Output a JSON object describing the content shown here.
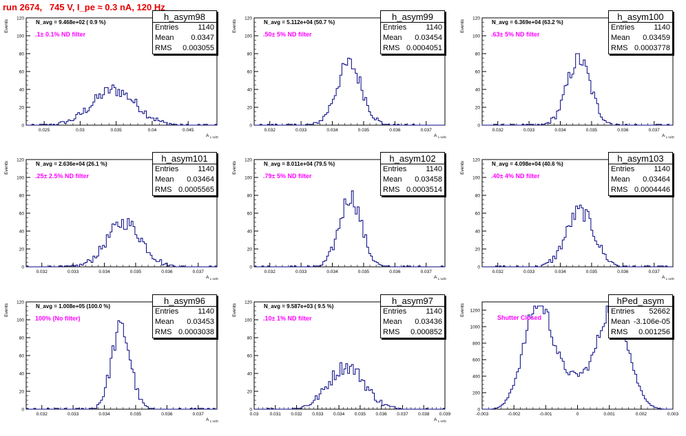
{
  "page_title": "run 2674,   745 V, I_pe ≈ 0.3 nA, 120 Hz",
  "colors": {
    "title": "#e60000",
    "line": "#000080",
    "filter_label": "#ff00ff"
  },
  "chart_data": [
    {
      "type": "bar",
      "name": "h_asym98",
      "navg": "N_avg = 9.468e+02 ( 0.9 %)",
      "filter": ".1± 0.1% ND filter",
      "entries": "1140",
      "mean": "0.0347",
      "rms": "0.003055",
      "ylabel": "Events",
      "xlabel": "A",
      "xlim": [
        0.0225,
        0.049
      ],
      "ylim": [
        0,
        120
      ],
      "xticks": [
        0.025,
        0.03,
        0.035,
        0.04,
        0.045
      ],
      "xticklabels": [
        "0.025",
        "0.03",
        "0.035",
        "0.04",
        "0.045"
      ],
      "yticks": [
        0,
        20,
        40,
        60,
        80,
        100,
        120
      ],
      "dist": {
        "mu": 0.0347,
        "sigma": 0.003055,
        "n": 1140
      }
    },
    {
      "type": "bar",
      "name": "h_asym99",
      "navg": "N_avg = 5.112e+04 (50.7 %)",
      "filter": ".50± 5% ND filter",
      "entries": "1140",
      "mean": "0.03454",
      "rms": "0.0004051",
      "ylabel": "Events",
      "xlabel": "A",
      "xlim": [
        0.0315,
        0.0376
      ],
      "ylim": [
        0,
        120
      ],
      "xticks": [
        0.032,
        0.033,
        0.034,
        0.035,
        0.036,
        0.037
      ],
      "xticklabels": [
        "0.032",
        "0.033",
        "0.034",
        "0.035",
        "0.036",
        "0.037"
      ],
      "yticks": [
        0,
        20,
        40,
        60,
        80,
        100,
        120
      ],
      "dist": {
        "mu": 0.03454,
        "sigma": 0.0004051,
        "n": 1140
      }
    },
    {
      "type": "bar",
      "name": "h_asym100",
      "navg": "N_avg = 6.369e+04 (63.2 %)",
      "filter": ".63± 5% ND filter",
      "entries": "1140",
      "mean": "0.03459",
      "rms": "0.0003778",
      "ylabel": "Events",
      "xlabel": "A",
      "xlim": [
        0.0315,
        0.0376
      ],
      "ylim": [
        0,
        120
      ],
      "xticks": [
        0.032,
        0.033,
        0.034,
        0.035,
        0.036,
        0.037
      ],
      "xticklabels": [
        "0.032",
        "0.033",
        "0.034",
        "0.035",
        "0.036",
        "0.037"
      ],
      "yticks": [
        0,
        20,
        40,
        60,
        80,
        100,
        120
      ],
      "dist": {
        "mu": 0.03459,
        "sigma": 0.0003778,
        "n": 1140
      }
    },
    {
      "type": "bar",
      "name": "h_asym101",
      "navg": "N_avg = 2.636e+04 (26.1 %)",
      "filter": ".25± 2.5% ND filter",
      "entries": "1140",
      "mean": "0.03464",
      "rms": "0.0005565",
      "ylabel": "Events",
      "xlabel": "A",
      "xlim": [
        0.0315,
        0.0376
      ],
      "ylim": [
        0,
        120
      ],
      "xticks": [
        0.032,
        0.033,
        0.034,
        0.035,
        0.036,
        0.037
      ],
      "xticklabels": [
        "0.032",
        "0.033",
        "0.034",
        "0.035",
        "0.036",
        "0.037"
      ],
      "yticks": [
        0,
        20,
        40,
        60,
        80,
        100,
        120
      ],
      "dist": {
        "mu": 0.03464,
        "sigma": 0.0005565,
        "n": 1140
      }
    },
    {
      "type": "bar",
      "name": "h_asym102",
      "navg": "N_avg = 8.011e+04 (79.5 %)",
      "filter": ".79± 5% ND filter",
      "entries": "1140",
      "mean": "0.03458",
      "rms": "0.0003514",
      "ylabel": "Events",
      "xlabel": "A",
      "xlim": [
        0.0315,
        0.0376
      ],
      "ylim": [
        0,
        120
      ],
      "xticks": [
        0.032,
        0.033,
        0.034,
        0.035,
        0.036,
        0.037
      ],
      "xticklabels": [
        "0.032",
        "0.033",
        "0.034",
        "0.035",
        "0.036",
        "0.037"
      ],
      "yticks": [
        0,
        20,
        40,
        60,
        80,
        100,
        120
      ],
      "dist": {
        "mu": 0.03458,
        "sigma": 0.0003514,
        "n": 1140
      }
    },
    {
      "type": "bar",
      "name": "h_asym103",
      "navg": "N_avg = 4.098e+04 (40.6 %)",
      "filter": ".40± 4% ND filter",
      "entries": "1140",
      "mean": "0.03464",
      "rms": "0.0004446",
      "ylabel": "Events",
      "xlabel": "A",
      "xlim": [
        0.0315,
        0.0376
      ],
      "ylim": [
        0,
        120
      ],
      "xticks": [
        0.032,
        0.033,
        0.034,
        0.035,
        0.036,
        0.037
      ],
      "xticklabels": [
        "0.032",
        "0.033",
        "0.034",
        "0.035",
        "0.036",
        "0.037"
      ],
      "yticks": [
        0,
        20,
        40,
        60,
        80,
        100,
        120
      ],
      "dist": {
        "mu": 0.03464,
        "sigma": 0.0004446,
        "n": 1140
      }
    },
    {
      "type": "bar",
      "name": "h_asym96",
      "navg": "N_avg = 1.008e+05 (100.0 %)",
      "filter": "100% (No filter)",
      "entries": "1140",
      "mean": "0.03453",
      "rms": "0.0003038",
      "ylabel": "Events",
      "xlabel": "A",
      "xlim": [
        0.0315,
        0.0376
      ],
      "ylim": [
        0,
        120
      ],
      "xticks": [
        0.032,
        0.033,
        0.034,
        0.035,
        0.036,
        0.037
      ],
      "xticklabels": [
        "0.032",
        "0.033",
        "0.034",
        "0.035",
        "0.036",
        "0.037"
      ],
      "yticks": [
        0,
        20,
        40,
        60,
        80,
        100,
        120
      ],
      "dist": {
        "mu": 0.03453,
        "sigma": 0.0003038,
        "n": 1140
      }
    },
    {
      "type": "bar",
      "name": "h_asym97",
      "navg": "N_avg = 9.587e+03 ( 9.5 %)",
      "filter": ".10± 1% ND filter",
      "entries": "1140",
      "mean": "0.03436",
      "rms": "0.000852",
      "ylabel": "Events",
      "xlabel": "A",
      "xlim": [
        0.03,
        0.039
      ],
      "ylim": [
        0,
        120
      ],
      "xticks": [
        0.03,
        0.031,
        0.032,
        0.033,
        0.034,
        0.035,
        0.036,
        0.037,
        0.038,
        0.039
      ],
      "xticklabels": [
        "0.03",
        "0.031",
        "0.032",
        "0.033",
        "0.034",
        "0.035",
        "0.036",
        "0.037",
        "0.038",
        "0.039"
      ],
      "yticks": [
        0,
        20,
        40,
        60,
        80,
        100,
        120
      ],
      "dist": {
        "mu": 0.03436,
        "sigma": 0.000852,
        "n": 1140
      }
    },
    {
      "type": "bar",
      "name": "hPed_asym",
      "navg": "",
      "filter": "Shutter Closed",
      "entries": "52662",
      "mean": "-3.106e-05",
      "rms": "0.001256",
      "ylabel": "Events",
      "xlabel": "",
      "xlim": [
        -0.003,
        0.003
      ],
      "ylim": [
        0,
        1300
      ],
      "xticks": [
        -0.003,
        -0.002,
        -0.001,
        0,
        0.001,
        0.002,
        0.003
      ],
      "xticklabels": [
        "-0.003",
        "-0.002",
        "-0.001",
        "0",
        "0.001",
        "0.002",
        "0.003"
      ],
      "yticks": [
        0,
        200,
        400,
        600,
        800,
        1000,
        1200
      ],
      "bimodal": true
    }
  ]
}
